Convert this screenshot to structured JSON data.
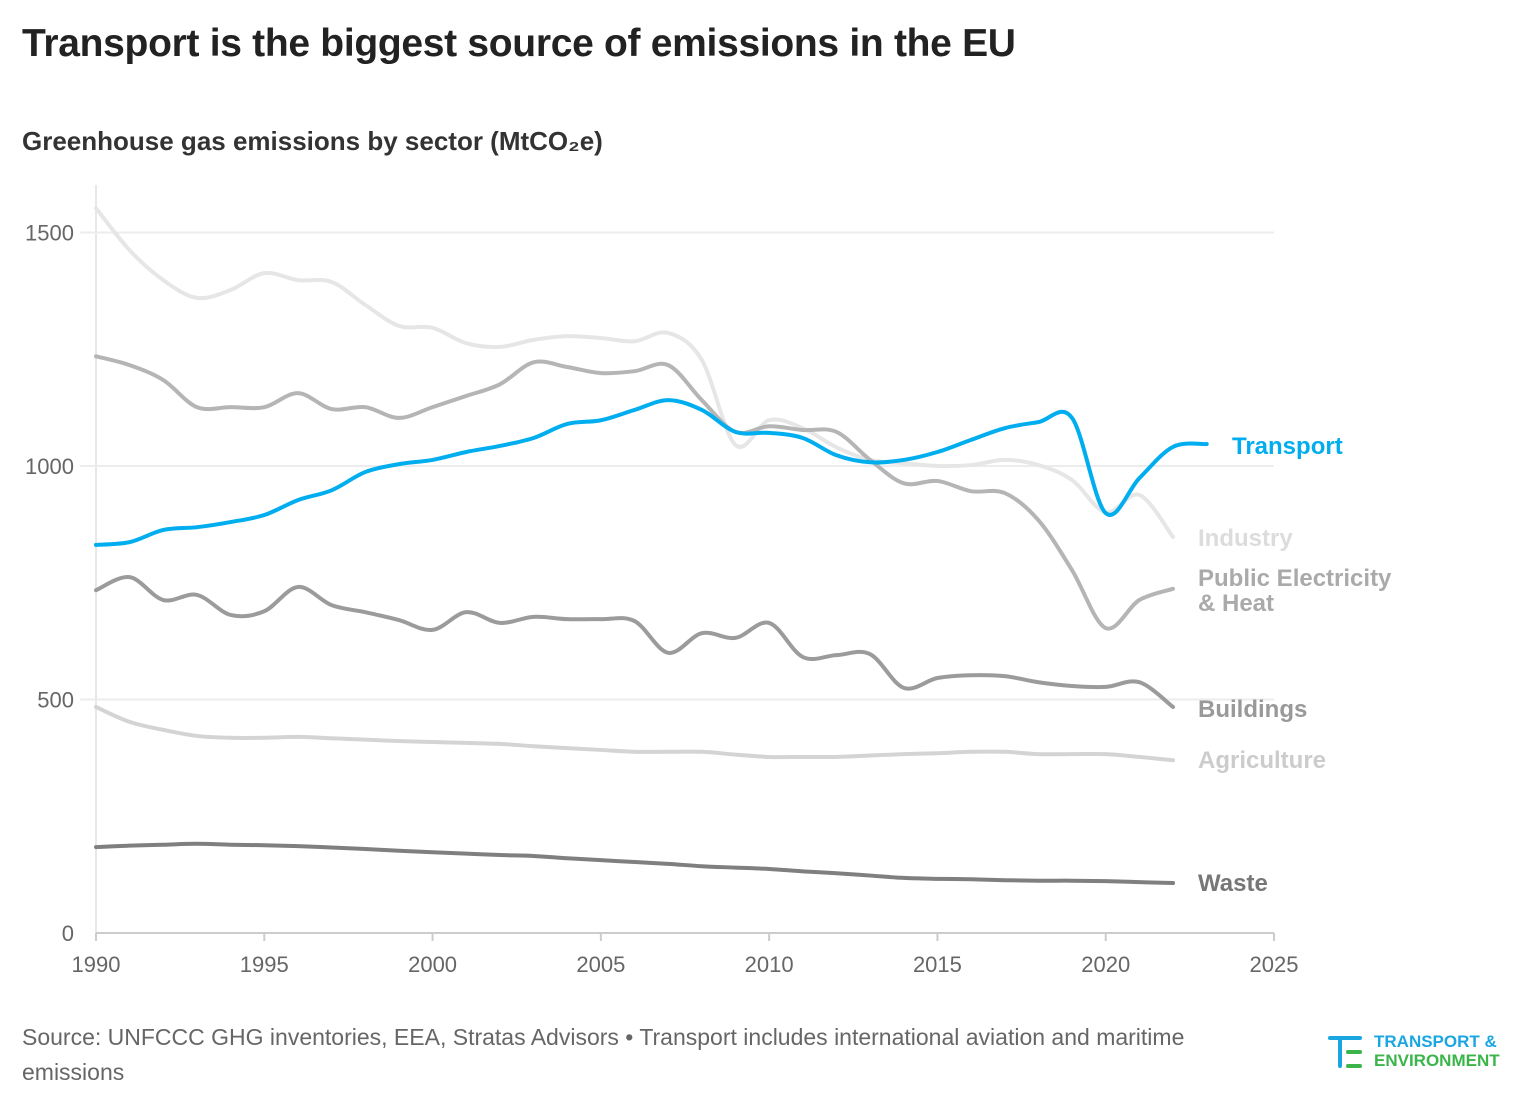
{
  "title": "Transport is the biggest source of emissions in the EU",
  "source": "Source: UNFCCC GHG inventories, EEA, Stratas Advisors • Transport includes international aviation and maritime emissions",
  "logo": {
    "line1": "TRANSPORT &",
    "line2": "ENVIRONMENT",
    "colors": {
      "blue": "#1aa6e0",
      "green": "#3bb54a"
    }
  },
  "chart_data": {
    "type": "line",
    "title": "Greenhouse gas emissions by sector (MtCO₂e)",
    "xlabel": "",
    "ylabel": "",
    "xlim": [
      1990,
      2025
    ],
    "ylim": [
      0,
      1600
    ],
    "xticks": [
      1990,
      1995,
      2000,
      2005,
      2010,
      2015,
      2020,
      2025
    ],
    "yticks": [
      0,
      500,
      1000,
      1500
    ],
    "grid": "horizontal",
    "legend": "direct labels at line ends (right)",
    "series": [
      {
        "name": "Industry",
        "color": "#e6e6e6",
        "label_color": "#dcdcdc",
        "start_year": 1990,
        "values": [
          1552,
          1462,
          1398,
          1360,
          1377,
          1413,
          1398,
          1394,
          1345,
          1300,
          1296,
          1263,
          1255,
          1270,
          1278,
          1274,
          1267,
          1285,
          1227,
          1045,
          1098,
          1081,
          1040,
          1013,
          1006,
          1000,
          1002,
          1013,
          1002,
          970,
          901,
          938,
          848
        ]
      },
      {
        "name": "Public Electricity & Heat",
        "color": "#b5b5b5",
        "label_color": "#aaaaaa",
        "start_year": 1990,
        "values": [
          1235,
          1216,
          1184,
          1126,
          1126,
          1126,
          1156,
          1122,
          1126,
          1103,
          1126,
          1150,
          1175,
          1222,
          1212,
          1199,
          1203,
          1216,
          1141,
          1073,
          1085,
          1077,
          1073,
          1013,
          963,
          968,
          946,
          942,
          884,
          777,
          653,
          713,
          737
        ]
      },
      {
        "name": "Transport",
        "color": "#00aeef",
        "label_color": "#00aeef",
        "start_year": 1990,
        "values": [
          831,
          837,
          863,
          869,
          880,
          895,
          927,
          948,
          987,
          1004,
          1013,
          1030,
          1043,
          1060,
          1090,
          1098,
          1120,
          1141,
          1120,
          1073,
          1071,
          1060,
          1023,
          1008,
          1013,
          1030,
          1056,
          1081,
          1094,
          1103,
          899,
          974,
          1041,
          1047
        ]
      },
      {
        "name": "Buildings",
        "color": "#9b9b9b",
        "label_color": "#999999",
        "start_year": 1990,
        "values": [
          734,
          762,
          713,
          724,
          681,
          689,
          741,
          702,
          687,
          670,
          649,
          687,
          664,
          677,
          672,
          672,
          668,
          600,
          642,
          632,
          664,
          591,
          595,
          597,
          525,
          546,
          552,
          550,
          537,
          529,
          527,
          537,
          484
        ]
      },
      {
        "name": "Agriculture",
        "color": "#d4d4d4",
        "label_color": "#cccccc",
        "start_year": 1990,
        "values": [
          484,
          452,
          435,
          422,
          418,
          418,
          420,
          417,
          414,
          411,
          409,
          407,
          405,
          400,
          396,
          392,
          388,
          388,
          388,
          382,
          377,
          377,
          377,
          380,
          383,
          385,
          388,
          388,
          383,
          383,
          383,
          377,
          370
        ]
      },
      {
        "name": "Waste",
        "color": "#7f7f7f",
        "label_color": "#777777",
        "start_year": 1990,
        "values": [
          184,
          187,
          189,
          191,
          189,
          188,
          186,
          183,
          180,
          176,
          173,
          170,
          167,
          165,
          160,
          156,
          152,
          148,
          143,
          140,
          137,
          132,
          128,
          123,
          118,
          116,
          115,
          113,
          112,
          112,
          111,
          109,
          107
        ]
      }
    ],
    "labels": {
      "industry": "Industry",
      "public_1": "Public Electricity",
      "public_2": "& Heat",
      "transport": "Transport",
      "buildings": "Buildings",
      "agriculture": "Agriculture",
      "waste": "Waste"
    }
  }
}
